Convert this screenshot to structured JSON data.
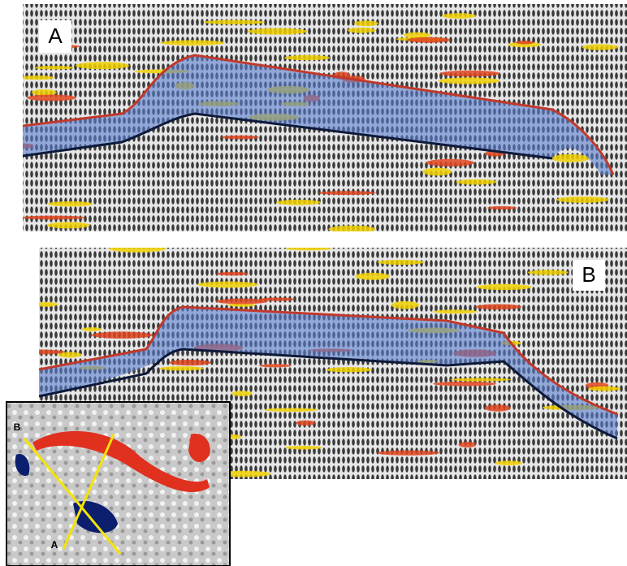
{
  "panels": [
    {
      "label": "A"
    },
    {
      "label": "B"
    }
  ],
  "inset": {
    "labels": [
      "B",
      "A"
    ]
  }
}
